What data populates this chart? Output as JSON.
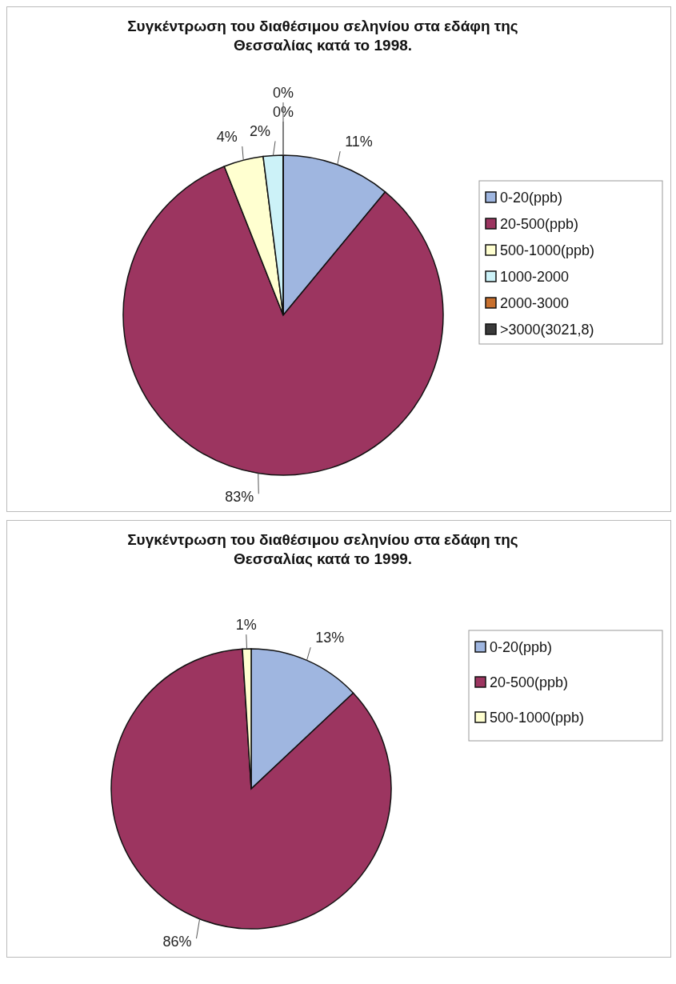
{
  "chart_data": [
    {
      "type": "pie",
      "title": "Συγκέντρωση του διαθέσιμου σεληνίου στα εδάφη της Θεσσαλίας κατά το 1998.",
      "categories": [
        "0-20(ppb)",
        "20-500(ppb)",
        "500-1000(ppb)",
        "1000-2000",
        "2000-3000",
        ">3000(3021,8)"
      ],
      "values": [
        11,
        83,
        4,
        2,
        0,
        0
      ],
      "value_labels": [
        "11%",
        "83%",
        "4%",
        "2%",
        "0%",
        "0%"
      ],
      "colors": [
        "#9fb6e0",
        "#9c3560",
        "#ffffd0",
        "#ccf2f8",
        "#c8702e",
        "#3a3a3a"
      ],
      "legend": "right"
    },
    {
      "type": "pie",
      "title": "Συγκέντρωση του διαθέσιμου σεληνίου στα εδάφη της Θεσσαλίας κατά το 1999.",
      "categories": [
        "0-20(ppb)",
        "20-500(ppb)",
        "500-1000(ppb)"
      ],
      "values": [
        13,
        86,
        1
      ],
      "value_labels": [
        "13%",
        "86%",
        "1%"
      ],
      "colors": [
        "#9fb6e0",
        "#9c3560",
        "#ffffd0"
      ],
      "legend": "right"
    }
  ]
}
